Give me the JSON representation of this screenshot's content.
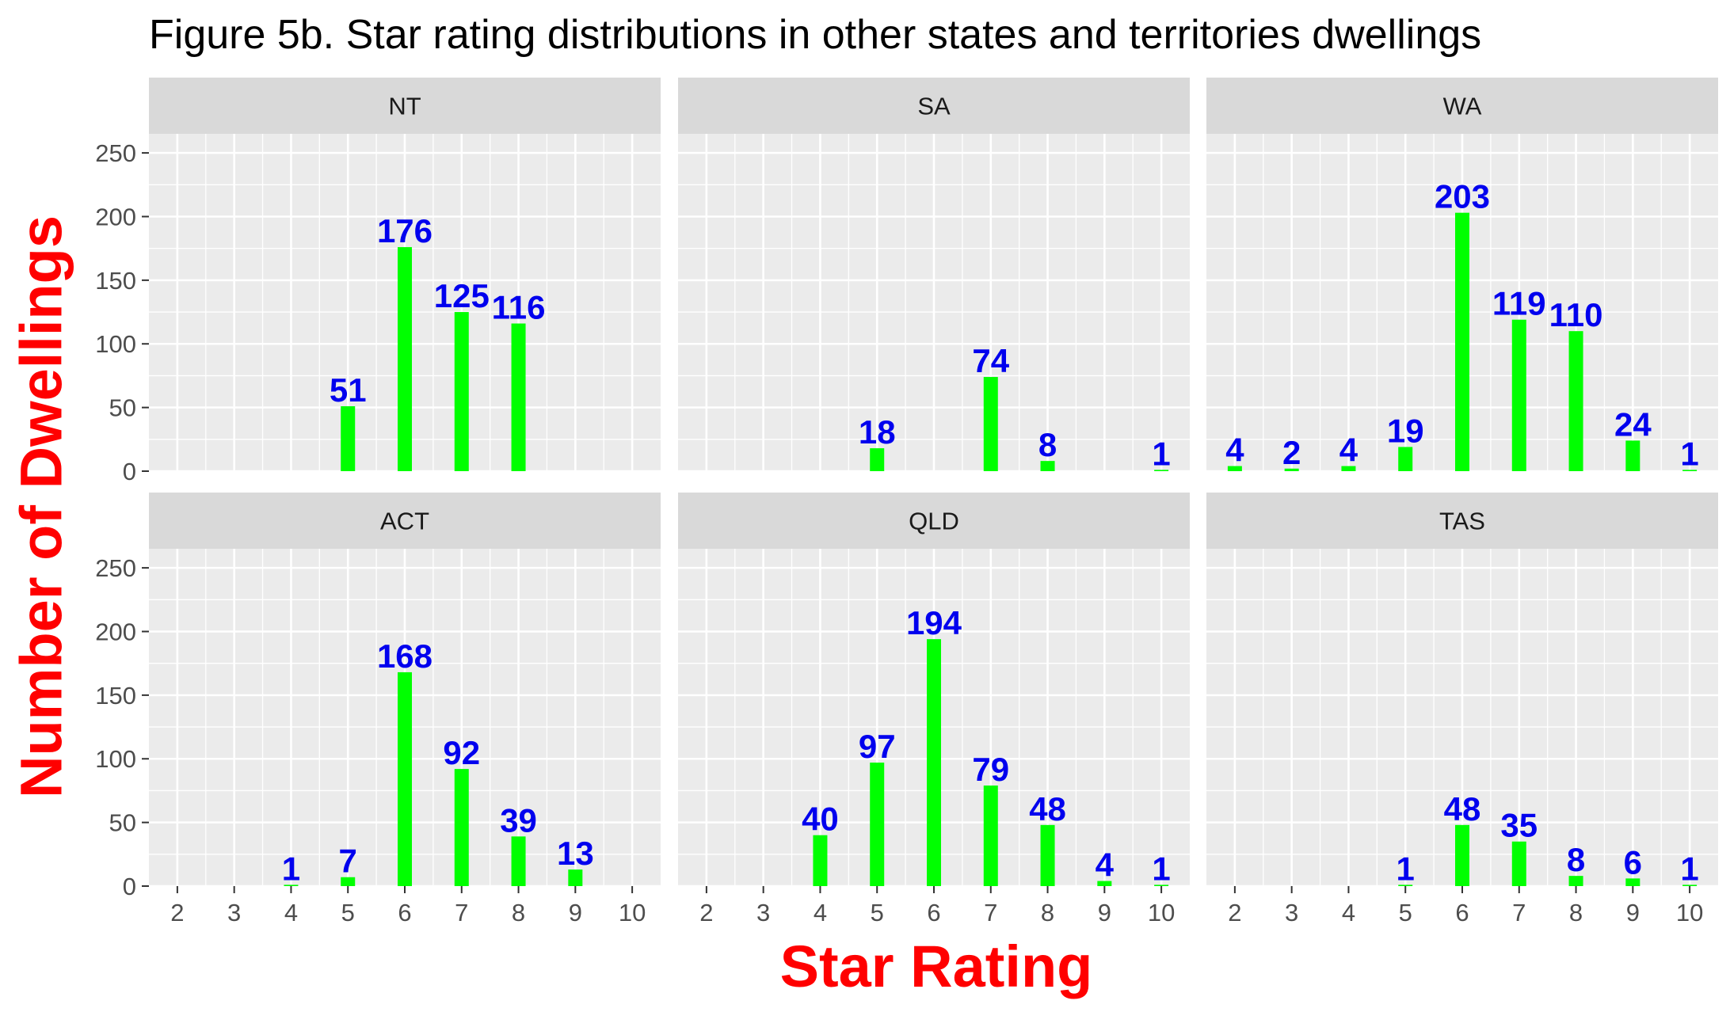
{
  "title": "Figure 5b. Star rating distributions in other states and territories dwellings",
  "colors": {
    "bar": "#00ff00",
    "label": "#0000ee",
    "axis_title": "#ff0000",
    "panel_bg": "#ebebeb",
    "strip_bg": "#d9d9d9",
    "grid": "#ffffff",
    "tick_text": "#4d4d4d"
  },
  "chart_data": {
    "type": "bar",
    "xlabel": "Star Rating",
    "ylabel": "Number of Dwellings",
    "x_ticks": [
      2,
      3,
      4,
      5,
      6,
      7,
      8,
      9,
      10
    ],
    "xlim": [
      1.5,
      10.5
    ],
    "ylim": [
      0,
      265
    ],
    "y_ticks": [
      0,
      50,
      100,
      150,
      200,
      250
    ],
    "grid": true,
    "facets": [
      {
        "name": "NT",
        "x": [
          5,
          6,
          7,
          8
        ],
        "values": [
          51,
          176,
          125,
          116
        ]
      },
      {
        "name": "SA",
        "x": [
          5,
          7,
          8,
          10
        ],
        "values": [
          18,
          74,
          8,
          1
        ]
      },
      {
        "name": "WA",
        "x": [
          2,
          3,
          4,
          5,
          6,
          7,
          8,
          9,
          10
        ],
        "values": [
          4,
          2,
          4,
          19,
          203,
          119,
          110,
          24,
          1
        ]
      },
      {
        "name": "ACT",
        "x": [
          4,
          5,
          6,
          7,
          8,
          9
        ],
        "values": [
          1,
          7,
          168,
          92,
          39,
          13
        ]
      },
      {
        "name": "QLD",
        "x": [
          4,
          5,
          6,
          7,
          8,
          9,
          10
        ],
        "values": [
          40,
          97,
          194,
          79,
          48,
          4,
          1
        ]
      },
      {
        "name": "TAS",
        "x": [
          5,
          6,
          7,
          8,
          9,
          10
        ],
        "values": [
          1,
          48,
          35,
          8,
          6,
          1
        ]
      }
    ]
  }
}
